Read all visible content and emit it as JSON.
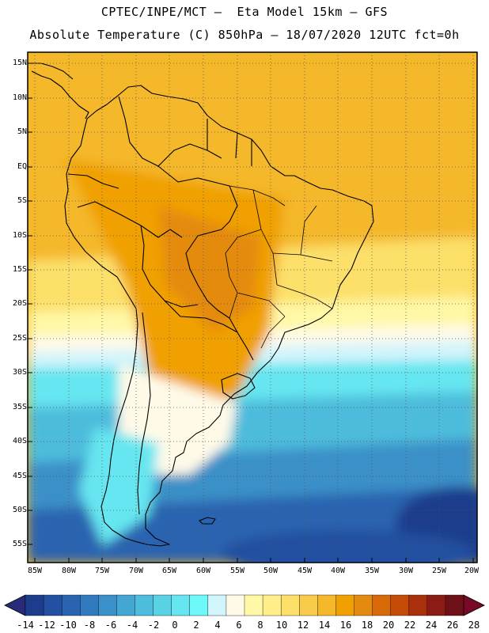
{
  "header": {
    "line1": "CPTEC/INPE/MCT –  Eta Model 15km – GFS",
    "line2": "Absolute Temperature (C) 850hPa – 18/07/2020 12UTC fct=0h"
  },
  "map": {
    "lat_labels": [
      "15N",
      "10N",
      "5N",
      "EQ",
      "5S",
      "10S",
      "15S",
      "20S",
      "25S",
      "30S",
      "35S",
      "40S",
      "45S",
      "50S",
      "55S"
    ],
    "lon_labels": [
      "85W",
      "80W",
      "75W",
      "70W",
      "65W",
      "60W",
      "55W",
      "50W",
      "45W",
      "40W",
      "35W",
      "30W",
      "25W",
      "20W"
    ]
  },
  "colorbar": {
    "labels": [
      "-14",
      "-12",
      "-10",
      "-8",
      "-6",
      "-4",
      "-2",
      "0",
      "2",
      "4",
      "6",
      "8",
      "10",
      "12",
      "14",
      "16",
      "18",
      "20",
      "22",
      "24",
      "26",
      "28"
    ],
    "colors": [
      "#1e3c8c",
      "#2350a0",
      "#2a64b0",
      "#327abe",
      "#3a90c8",
      "#44a6d2",
      "#4ebcdc",
      "#5ad2e6",
      "#66e6f0",
      "#6ef8fa",
      "#d2f4fc",
      "#fffae8",
      "#fff8a6",
      "#ffee8a",
      "#fce06a",
      "#f8cc4a",
      "#f4b82a",
      "#f0a000",
      "#e48a10",
      "#d86a0a",
      "#c44c08",
      "#a8300a",
      "#8a1c14",
      "#6e1018"
    ],
    "low_arrow_color": "#2a2a7a",
    "high_arrow_color": "#780a28"
  },
  "field_colors": {
    "ocean_deep": "#1e3c8c",
    "ocean_dark": "#2a64b0",
    "ocean_mid": "#3a90c8",
    "ocean_light": "#4ebcdc",
    "cyan": "#66e6f0",
    "pale_cyan": "#d2f4fc",
    "cream": "#fffae8",
    "light_yellow": "#fff8a6",
    "yellow": "#fce06a",
    "gold": "#f8cc4a",
    "amber": "#f4b82a",
    "orange": "#f0a000",
    "dark_orange": "#e48a10",
    "coast": "#000000",
    "grid": "#555555"
  }
}
